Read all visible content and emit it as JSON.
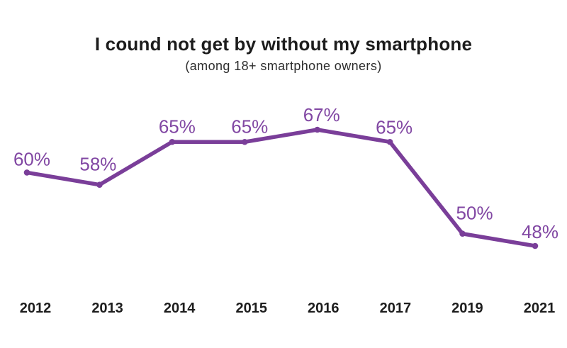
{
  "header": {
    "title": "I cound not get by without my smartphone",
    "subtitle": "(among 18+ smartphone owners)"
  },
  "chart_data": {
    "type": "line",
    "title": "I cound not get by without my smartphone",
    "subtitle": "(among 18+ smartphone owners)",
    "categories": [
      "2012",
      "2013",
      "2014",
      "2015",
      "2016",
      "2017",
      "2019",
      "2021"
    ],
    "values": [
      60,
      58,
      65,
      65,
      67,
      65,
      50,
      48
    ],
    "point_labels": [
      "60%",
      "58%",
      "65%",
      "65%",
      "67%",
      "65%",
      "50%",
      "48%"
    ],
    "unit": "%",
    "ylim": [
      44,
      72
    ],
    "grid": false,
    "legend": "none",
    "colors": {
      "line": "#7a3e99",
      "marker": "#7a3e99",
      "point_label": "#8147a3",
      "axis_label": "#1d1d1d",
      "title": "#1c1c1c",
      "subtitle": "#2d2d2d",
      "background": "#ffffff"
    }
  }
}
